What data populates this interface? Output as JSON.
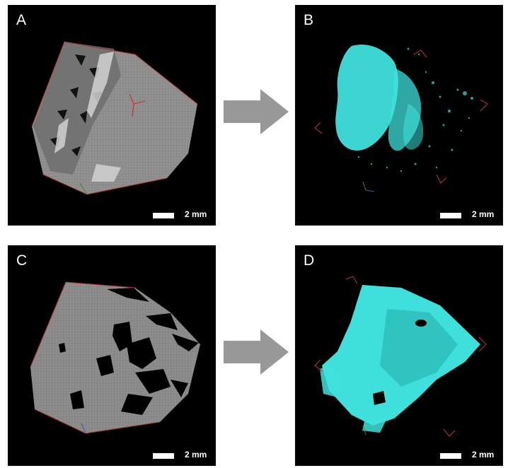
{
  "panels": [
    {
      "id": "A",
      "letter": "A",
      "scale_label": "2 mm"
    },
    {
      "id": "B",
      "letter": "B",
      "scale_label": "2 mm"
    },
    {
      "id": "C",
      "letter": "C",
      "scale_label": "2 mm"
    },
    {
      "id": "D",
      "letter": "D",
      "scale_label": "2 mm"
    }
  ],
  "colors": {
    "background": "#000000",
    "crystal_gray": "#8c8c8c",
    "segmentation": "#3fe0dc",
    "arrow": "#999999",
    "axis_red": "#a83030"
  }
}
